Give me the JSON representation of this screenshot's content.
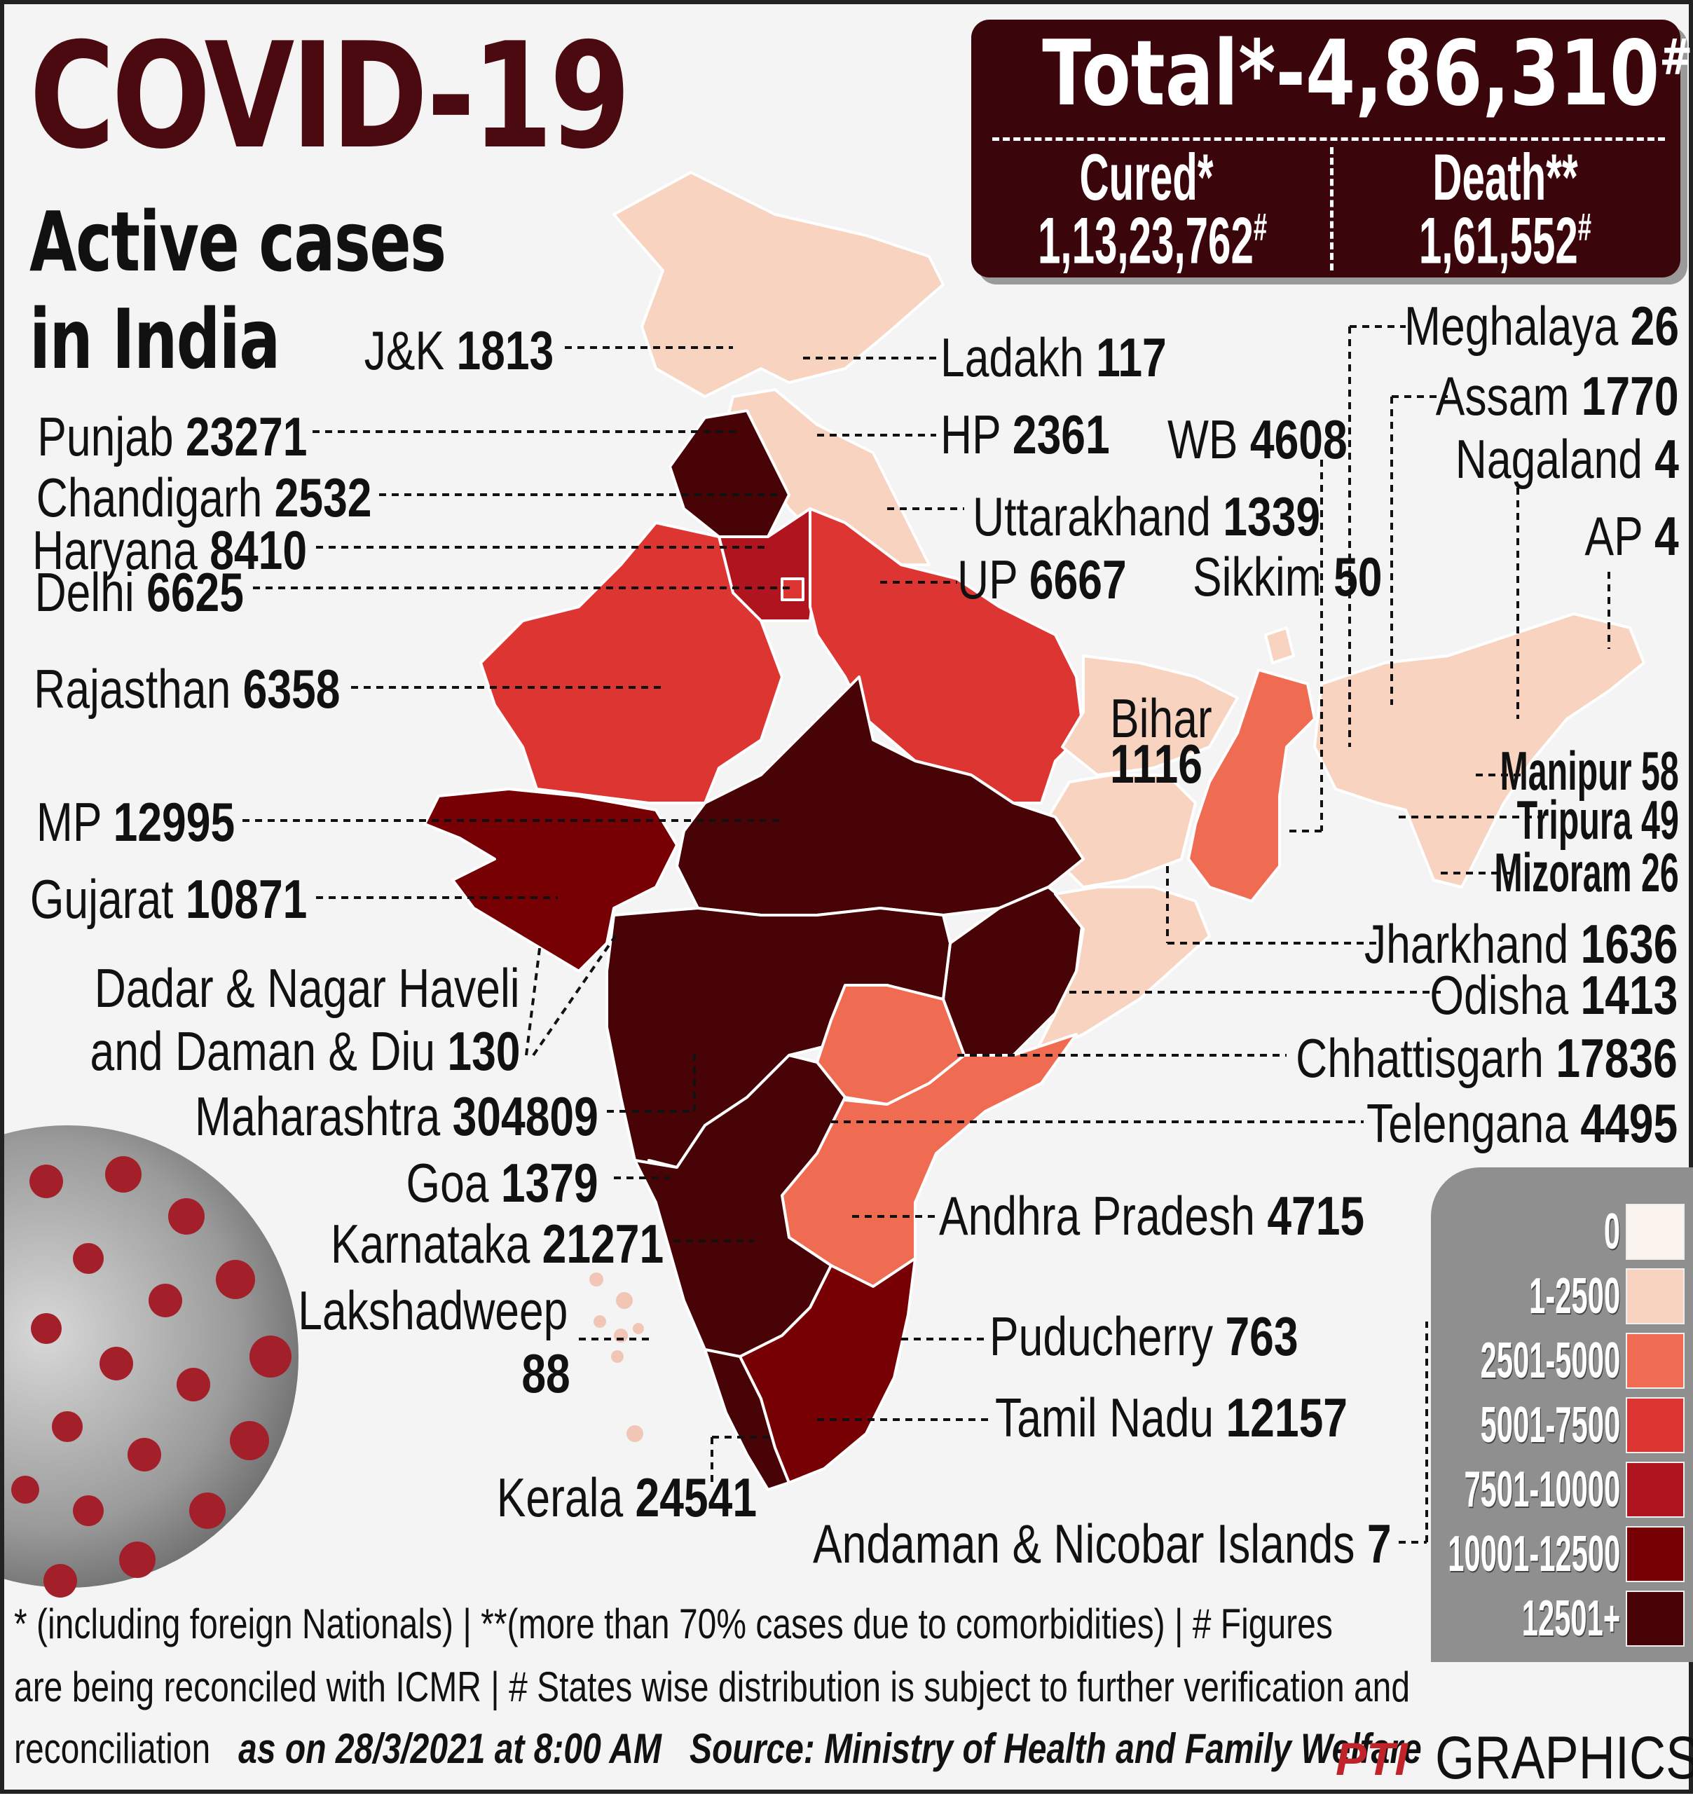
{
  "title": "COVID-19",
  "subtitle_line1": "Active cases",
  "subtitle_line2": "in India",
  "totals": {
    "total_label": "Total*-",
    "total_value": "4,86,310",
    "total_mark": "#",
    "cured_label": "Cured*",
    "cured_value": "1,13,23,762",
    "cured_mark": "#",
    "death_label": "Death**",
    "death_value": "1,61,552",
    "death_mark": "#"
  },
  "colors": {
    "band_0": "#fbf3ee",
    "band_1_2500": "#f7d3c0",
    "band_2501_5000": "#ef6c52",
    "band_5001_7500": "#dd3532",
    "band_7501_10000": "#b0141f",
    "band_10001_12500": "#770005",
    "band_12501_plus": "#470305",
    "title": "#4a0a10",
    "box": "#3a060b"
  },
  "legend": [
    {
      "label": "0",
      "color": "#fbf3ee"
    },
    {
      "label": "1-2500",
      "color": "#f7d3c0"
    },
    {
      "label": "2501-5000",
      "color": "#ef6c52"
    },
    {
      "label": "5001-7500",
      "color": "#dd3532"
    },
    {
      "label": "7501-10000",
      "color": "#b0141f"
    },
    {
      "label": "10001-12500",
      "color": "#770005"
    },
    {
      "label": "12501+",
      "color": "#470305"
    }
  ],
  "states": [
    {
      "name": "J&K",
      "value": "1813"
    },
    {
      "name": "Ladakh",
      "value": "117"
    },
    {
      "name": "Punjab",
      "value": "23271"
    },
    {
      "name": "HP",
      "value": "2361"
    },
    {
      "name": "Chandigarh",
      "value": "2532"
    },
    {
      "name": "Haryana",
      "value": "8410"
    },
    {
      "name": "Uttarakhand",
      "value": "1339"
    },
    {
      "name": "Delhi",
      "value": "6625"
    },
    {
      "name": "UP",
      "value": "6667"
    },
    {
      "name": "Rajasthan",
      "value": "6358"
    },
    {
      "name": "MP",
      "value": "12995"
    },
    {
      "name": "Gujarat",
      "value": "10871"
    },
    {
      "name": "Dadar & Nagar Haveli",
      "name2": "and Daman & Diu",
      "value": "130"
    },
    {
      "name": "Maharashtra",
      "value": "304809"
    },
    {
      "name": "Goa",
      "value": "1379"
    },
    {
      "name": "Karnataka",
      "value": "21271"
    },
    {
      "name": "Lakshadweep",
      "value": "88"
    },
    {
      "name": "Kerala",
      "value": "24541"
    },
    {
      "name": "Tamil Nadu",
      "value": "12157"
    },
    {
      "name": "Puducherry",
      "value": "763"
    },
    {
      "name": "Andhra Pradesh",
      "value": "4715"
    },
    {
      "name": "Telengana",
      "value": "4495"
    },
    {
      "name": "Chhattisgarh",
      "value": "17836"
    },
    {
      "name": "Odisha",
      "value": "1413"
    },
    {
      "name": "Jharkhand",
      "value": "1636"
    },
    {
      "name": "Bihar",
      "value": "1116"
    },
    {
      "name": "WB",
      "value": "4608"
    },
    {
      "name": "Sikkim",
      "value": "50"
    },
    {
      "name": "Meghalaya",
      "value": "26"
    },
    {
      "name": "Assam",
      "value": "1770"
    },
    {
      "name": "Nagaland",
      "value": "4"
    },
    {
      "name": "AP",
      "value": "4"
    },
    {
      "name": "Manipur",
      "value": "58"
    },
    {
      "name": "Tripura",
      "value": "49"
    },
    {
      "name": "Mizoram",
      "value": "26"
    },
    {
      "name": "Andaman & Nicobar Islands",
      "value": "7"
    }
  ],
  "footer": {
    "line1": "* (including foreign Nationals) | **(more than 70% cases due to comorbidities) | # Figures",
    "line2": "are being reconciled with ICMR  | # States wise distribution is subject to further verification and",
    "line3_a": "reconciliation",
    "line3_date": "as on 28/3/2021 at 8:00 AM",
    "line3_source": "Source: Ministry of Health and Family Welfare"
  },
  "credit": {
    "logo": "PTI",
    "text": "GRAPHICS"
  }
}
